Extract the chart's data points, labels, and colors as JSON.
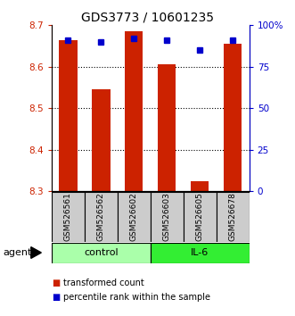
{
  "title": "GDS3773 / 10601235",
  "samples": [
    "GSM526561",
    "GSM526562",
    "GSM526602",
    "GSM526603",
    "GSM526605",
    "GSM526678"
  ],
  "red_values": [
    8.665,
    8.545,
    8.685,
    8.605,
    8.325,
    8.655
  ],
  "blue_values": [
    91,
    90,
    92,
    91,
    85,
    91
  ],
  "ymin": 8.3,
  "ymax": 8.7,
  "yright_min": 0,
  "yright_max": 100,
  "yticks_left": [
    8.3,
    8.4,
    8.5,
    8.6,
    8.7
  ],
  "yticks_right": [
    0,
    25,
    50,
    75,
    100
  ],
  "grid_lines": [
    8.4,
    8.5,
    8.6
  ],
  "groups": [
    {
      "label": "control",
      "indices": [
        0,
        1,
        2
      ],
      "color": "#AAFFAA"
    },
    {
      "label": "IL-6",
      "indices": [
        3,
        4,
        5
      ],
      "color": "#33EE33"
    }
  ],
  "bar_color": "#CC2200",
  "blue_color": "#0000CC",
  "bar_width": 0.55,
  "legend_red_label": "transformed count",
  "legend_blue_label": "percentile rank within the sample",
  "agent_label": "agent",
  "sample_bg_color": "#CCCCCC",
  "title_fontsize": 10,
  "tick_fontsize": 7.5,
  "label_fontsize": 8
}
